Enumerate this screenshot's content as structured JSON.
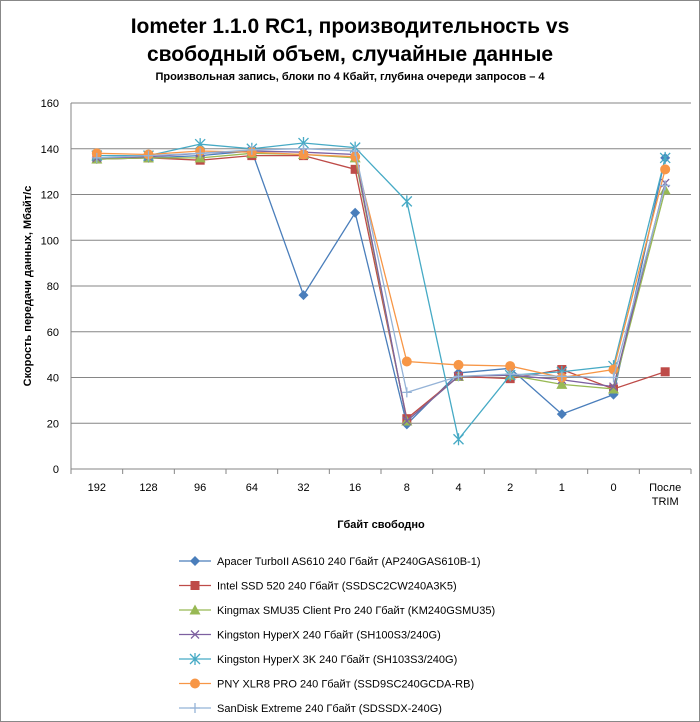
{
  "chart_data": {
    "type": "line",
    "title": "Iometer 1.1.0 RC1, производительность vs свободный объем, случайные данные",
    "title_lines": [
      "Iometer 1.1.0 RC1, производительность vs",
      "свободный объем, случайные данные"
    ],
    "subtitle": "Произвольная  запись, блоки по 4 Кбайт, глубина очереди запросов – 4",
    "xlabel": "Гбайт свободно",
    "ylabel": "Скорость передачи данных, Мбайт/с",
    "ylim": [
      0,
      160
    ],
    "yticks": [
      0,
      20,
      40,
      60,
      80,
      100,
      120,
      140,
      160
    ],
    "grid": true,
    "legend_position": "bottom",
    "categories": [
      "192",
      "128",
      "96",
      "64",
      "32",
      "16",
      "8",
      "4",
      "2",
      "1",
      "0",
      "После TRIM"
    ],
    "series": [
      {
        "name": "Apacer TurboII AS610 240 Гбайт (AP240GAS610B-1)",
        "color": "#4a7ebb",
        "marker": "diamond",
        "values": [
          135.5,
          136,
          137,
          139,
          76,
          112,
          19.5,
          42,
          44,
          24,
          32.5,
          136
        ]
      },
      {
        "name": "Intel SSD 520 240 Гбайт (SSDSC2CW240A3K5)",
        "color": "#be4b48",
        "marker": "square",
        "values": [
          135.5,
          136,
          135,
          137,
          137,
          131,
          22,
          40.5,
          39.5,
          43.5,
          35,
          42.5
        ]
      },
      {
        "name": "Kingmax SMU35 Client Pro 240 Гбайт (KM240GSMU35)",
        "color": "#98b954",
        "marker": "triangle",
        "values": [
          135.5,
          136,
          136,
          138,
          137.5,
          136,
          21,
          40.5,
          41,
          37,
          35,
          122
        ]
      },
      {
        "name": "Kingston HyperX 240 Гбайт  (SH100S3/240G)",
        "color": "#7d60a0",
        "marker": "x",
        "values": [
          136,
          136.5,
          138,
          139,
          138.5,
          137.5,
          21,
          40.5,
          41,
          39,
          36,
          125
        ]
      },
      {
        "name": "Kingston HyperX 3K 240 Гбайт (SH103S3/240G)",
        "color": "#46aac5",
        "marker": "star",
        "values": [
          137,
          137,
          142,
          140,
          142.5,
          140.5,
          117,
          13,
          41,
          42.5,
          45,
          136
        ]
      },
      {
        "name": "PNY XLR8 PRO 240 Гбайт (SSD9SC240GCDA-RB)",
        "color": "#f79646",
        "marker": "circle",
        "values": [
          138,
          137.5,
          139,
          138.5,
          137.5,
          136.5,
          47,
          45.5,
          45,
          40,
          43.5,
          131
        ]
      },
      {
        "name": "SanDisk Extreme 240 Гбайт (SDSSDX-240G)",
        "color": "#95b3d7",
        "marker": "plus",
        "values": [
          136,
          137,
          138,
          139.5,
          140,
          139,
          33.5,
          40.5,
          41.5,
          40.5,
          40,
          124
        ]
      }
    ]
  }
}
